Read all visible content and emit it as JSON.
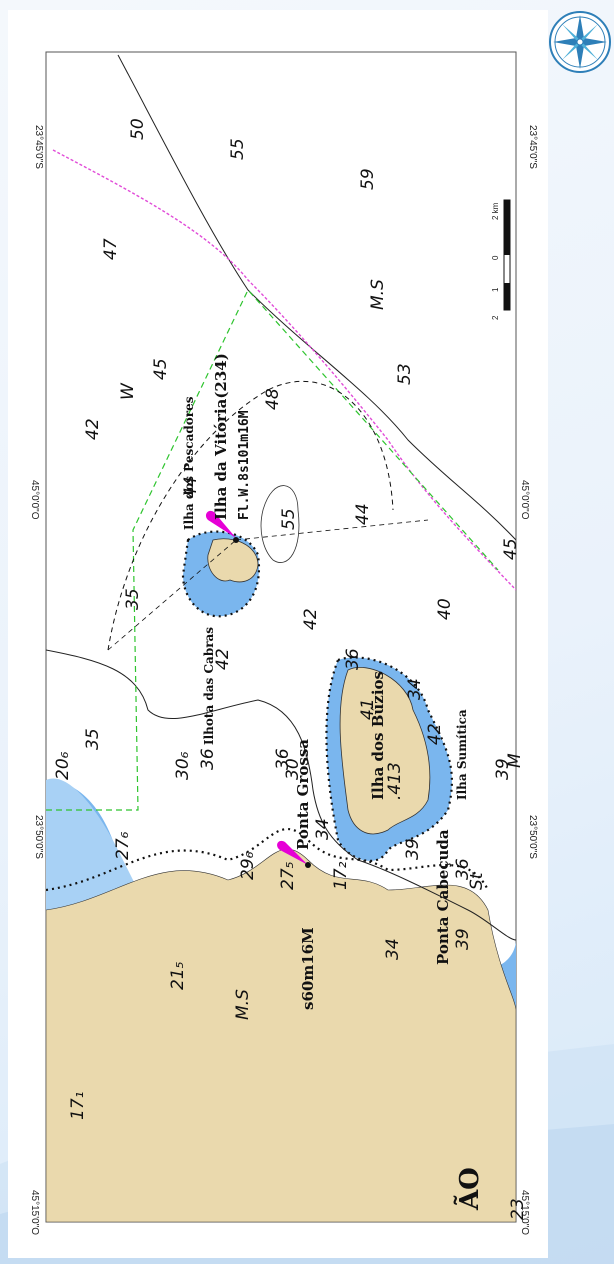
{
  "map": {
    "coordinates": {
      "left_top": "23°45'0\"S",
      "left_bottom": "23°50'0\"S",
      "right_top": "23°45'0\"S",
      "right_bottom": "23°50'0\"S",
      "top_1": "45°15'0\"O",
      "top_2": "45°0'0\"O",
      "bottom_1": "45°15'0\"O",
      "bottom_2": "45°0'0\"O"
    },
    "places": {
      "ilha_vitoria": "Ilha da Vitória(234)",
      "light_char": "Fl.W.8s101m16M",
      "ilha_pescadores": "Ilha dos Pescadores",
      "ilhota_cabras": "Ilhota das Cabras",
      "ilha_buzios": "Ilha dos Búzios",
      "ilha_sumitica": "Ilha Sumítica",
      "ponta_grossa": "Ponta Grossa",
      "ponta_cabecuda": "Ponta Cabeçuda",
      "light_2": "s60m16M",
      "mainland": "ÃO",
      "summit": ".413"
    },
    "soundings": [
      {
        "label": "55",
        "grid": "a1"
      },
      {
        "label": "59",
        "grid": "a2"
      },
      {
        "label": "47",
        "grid": "a3"
      },
      {
        "label": "M.S",
        "grid": "a4"
      },
      {
        "label": "53",
        "grid": "a5"
      },
      {
        "label": "50",
        "grid": "a6"
      },
      {
        "label": "45",
        "grid": "a7"
      },
      {
        "label": "W",
        "grid": "a8"
      },
      {
        "label": "42",
        "grid": "a9"
      },
      {
        "label": "48",
        "grid": "a10"
      },
      {
        "label": "44",
        "grid": "a11"
      },
      {
        "label": "44",
        "grid": "a12"
      },
      {
        "label": "55",
        "grid": "a13"
      },
      {
        "label": "45",
        "grid": "a14"
      },
      {
        "label": "40",
        "grid": "a15"
      },
      {
        "label": "42",
        "grid": "a16"
      },
      {
        "label": "35",
        "grid": "a17"
      },
      {
        "label": "42",
        "grid": "a18"
      },
      {
        "label": "35",
        "grid": "a19"
      },
      {
        "label": "36",
        "grid": "a20"
      },
      {
        "label": "36",
        "grid": "a21"
      },
      {
        "label": "41",
        "grid": "a22"
      },
      {
        "label": "42",
        "grid": "a23"
      },
      {
        "label": "39",
        "grid": "a24"
      },
      {
        "label": "M",
        "grid": "a25"
      },
      {
        "label": "36",
        "grid": "a26"
      },
      {
        "label": "34",
        "grid": "a27"
      },
      {
        "label": "36",
        "grid": "a28"
      },
      {
        "label": "30₆",
        "grid": "a29"
      },
      {
        "label": "30",
        "grid": "a30"
      },
      {
        "label": "20₆",
        "grid": "a31"
      },
      {
        "label": "27₆",
        "grid": "a32"
      },
      {
        "label": "29₆",
        "grid": "a33"
      },
      {
        "label": "34",
        "grid": "a34"
      },
      {
        "label": "39",
        "grid": "a35"
      },
      {
        "label": "39",
        "grid": "a36"
      },
      {
        "label": "34",
        "grid": "a37"
      },
      {
        "label": "21₅",
        "grid": "a38"
      },
      {
        "label": "27₅",
        "grid": "a39"
      },
      {
        "label": "17₂",
        "grid": "a40"
      },
      {
        "label": "M.S",
        "grid": "a41"
      },
      {
        "label": "17₁",
        "grid": "a42"
      },
      {
        "label": "St",
        "grid": "a43"
      },
      {
        "label": "23",
        "grid": "a44"
      }
    ],
    "scale_bar": {
      "labels": [
        "2",
        "1",
        "0",
        "2 km"
      ]
    },
    "compass_icon": "compass-rose-icon"
  }
}
